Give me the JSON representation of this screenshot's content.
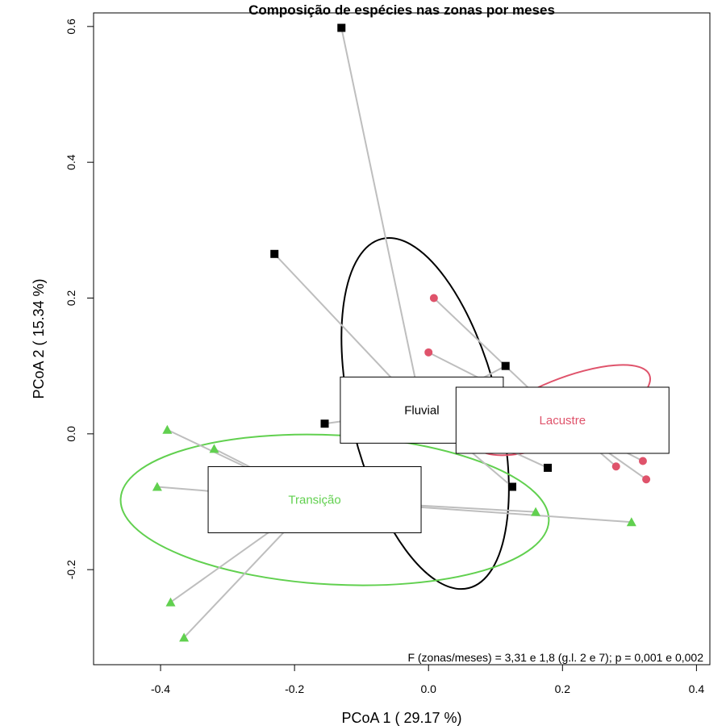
{
  "chart_data": {
    "type": "scatter",
    "title": "Composição de espécies nas zonas por meses",
    "xlabel": "PCoA 1 ( 29.17 %)",
    "ylabel": "PCoA 2 ( 15.34 %)",
    "xlim": [
      -0.5,
      0.42
    ],
    "ylim": [
      -0.34,
      0.62
    ],
    "xticks": [
      -0.4,
      -0.2,
      0.0,
      0.2,
      0.4
    ],
    "xtick_labels": [
      "-0.4",
      "-0.2",
      "0.0",
      "0.2",
      "0.4"
    ],
    "yticks": [
      -0.2,
      0.0,
      0.2,
      0.4,
      0.6
    ],
    "ytick_labels": [
      "-0.2",
      "0.0",
      "0.2",
      "0.4",
      "0.6"
    ],
    "grid": false,
    "annotation": "F (zonas/meses) = 3,31 e 1,8 (g.l. 2 e 7); p = 0,001 e 0,002",
    "series": [
      {
        "name": "Fluvial",
        "label": "Fluvial",
        "color": "#000000",
        "marker": "square",
        "centroid": [
          -0.01,
          0.035
        ],
        "ellipse": {
          "cx": -0.005,
          "cy": 0.03,
          "rx": 0.11,
          "ry": 0.265,
          "angle_deg": -14
        },
        "points": [
          {
            "x": -0.13,
            "y": 0.598
          },
          {
            "x": -0.23,
            "y": 0.265
          },
          {
            "x": 0.115,
            "y": 0.1
          },
          {
            "x": -0.155,
            "y": 0.015
          },
          {
            "x": 0.178,
            "y": -0.05
          },
          {
            "x": 0.125,
            "y": -0.078
          }
        ]
      },
      {
        "name": "Lacustre",
        "label": "Lacustre",
        "color": "#DF536B",
        "marker": "circle",
        "centroid": [
          0.2,
          0.02
        ],
        "ellipse": {
          "cx": 0.2,
          "cy": 0.035,
          "rx": 0.14,
          "ry": 0.045,
          "angle_deg": -22
        },
        "points": [
          {
            "x": 0.008,
            "y": 0.2
          },
          {
            "x": 0.0,
            "y": 0.12
          },
          {
            "x": 0.28,
            "y": -0.048
          },
          {
            "x": 0.32,
            "y": -0.04
          },
          {
            "x": 0.325,
            "y": -0.067
          }
        ]
      },
      {
        "name": "Transição",
        "label": "Transição",
        "color": "#61D04F",
        "marker": "triangle",
        "centroid": [
          -0.17,
          -0.097
        ],
        "ellipse": {
          "cx": -0.14,
          "cy": -0.112,
          "rx": 0.32,
          "ry": 0.11,
          "angle_deg": 3
        },
        "points": [
          {
            "x": -0.39,
            "y": 0.006
          },
          {
            "x": -0.32,
            "y": -0.022
          },
          {
            "x": -0.405,
            "y": -0.078
          },
          {
            "x": -0.385,
            "y": -0.248
          },
          {
            "x": -0.365,
            "y": -0.3
          },
          {
            "x": 0.16,
            "y": -0.115
          },
          {
            "x": 0.303,
            "y": -0.13
          }
        ]
      }
    ]
  }
}
